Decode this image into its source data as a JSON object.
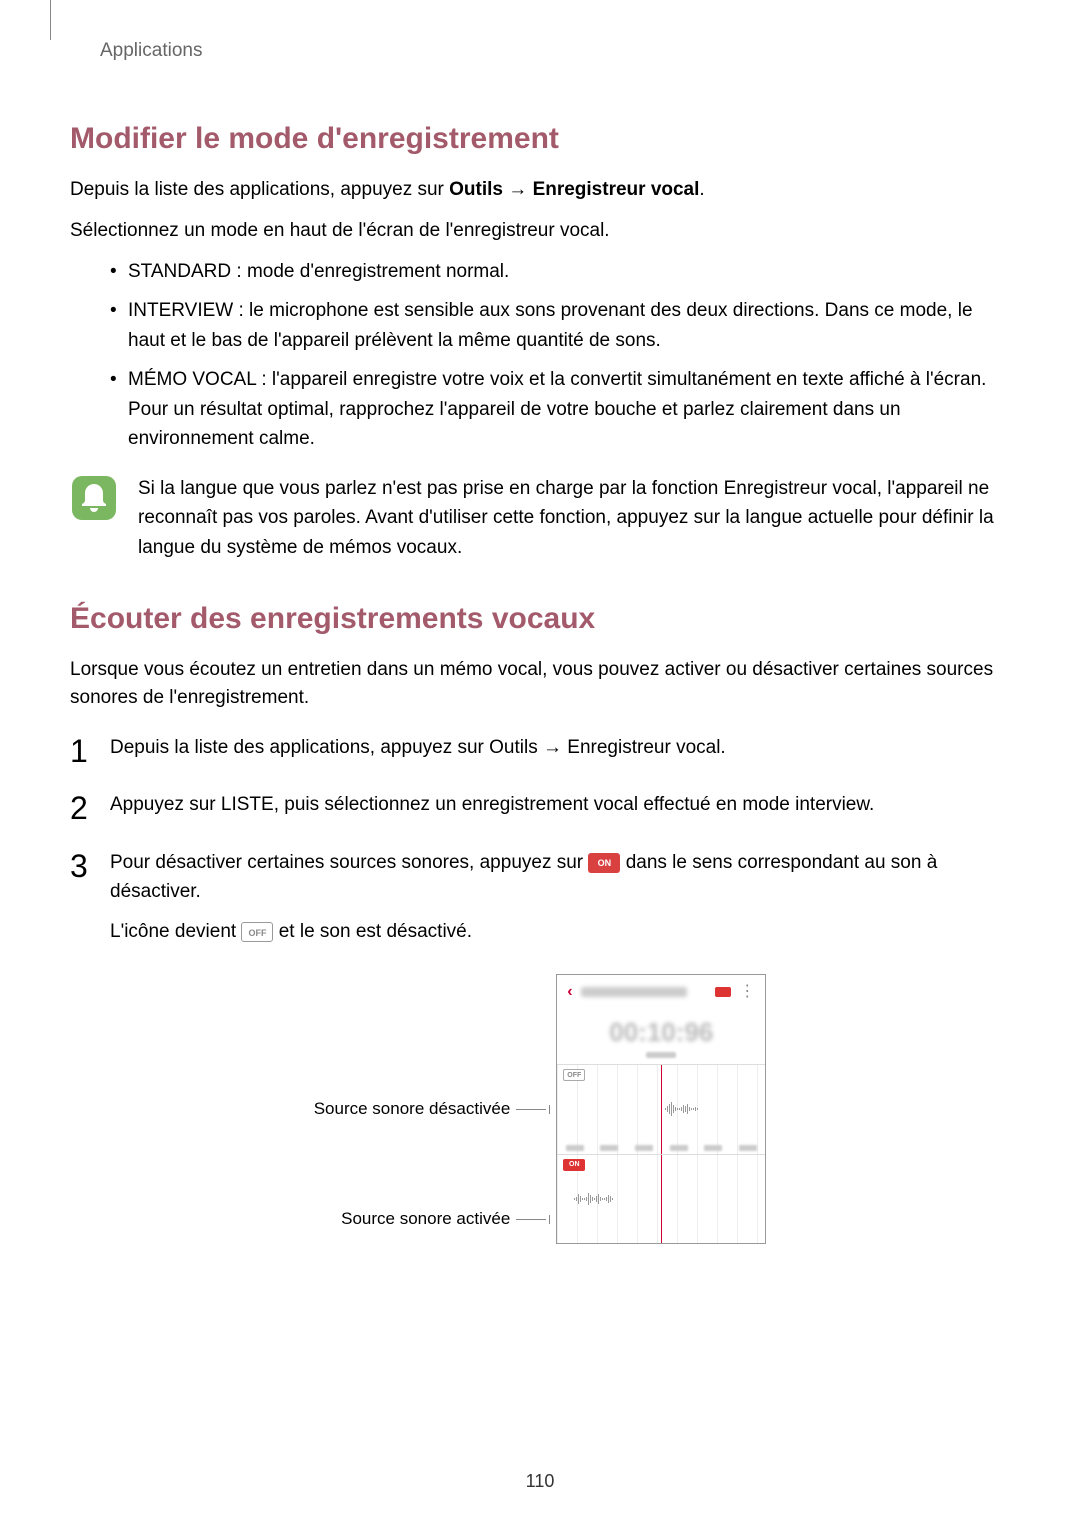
{
  "breadcrumb": "Applications",
  "section1": {
    "title": "Modifier le mode d'enregistrement",
    "title_color": "#a35a6a",
    "intro_pre": "Depuis la liste des applications, appuyez sur ",
    "intro_bold1": "Outils",
    "intro_arrow": " → ",
    "intro_bold2": "Enregistreur vocal",
    "intro_post": ".",
    "line2": "Sélectionnez un mode en haut de l'écran de l'enregistreur vocal.",
    "bullets": [
      {
        "term": "STANDARD",
        "text": " : mode d'enregistrement normal."
      },
      {
        "term": "INTERVIEW",
        "text": " : le microphone est sensible aux sons provenant des deux directions. Dans ce mode, le haut et le bas de l'appareil prélèvent la même quantité de sons."
      },
      {
        "term": "MÉMO VOCAL",
        "text": " : l'appareil enregistre votre voix et la convertit simultanément en texte affiché à l'écran. Pour un résultat optimal, rapprochez l'appareil de votre bouche et parlez clairement dans un environnement calme."
      }
    ],
    "note": "Si la langue que vous parlez n'est pas prise en charge par la fonction Enregistreur vocal, l'appareil ne reconnaît pas vos paroles. Avant d'utiliser cette fonction, appuyez sur la langue actuelle pour définir la langue du système de mémos vocaux.",
    "note_icon": {
      "bg": "#7bb661",
      "fg": "#ffffff"
    }
  },
  "section2": {
    "title": "Écouter des enregistrements vocaux",
    "title_color": "#a35a6a",
    "intro": "Lorsque vous écoutez un entretien dans un mémo vocal, vous pouvez activer ou désactiver certaines sources sonores de l'enregistrement.",
    "steps": {
      "s1_pre": "Depuis la liste des applications, appuyez sur ",
      "s1_bold1": "Outils",
      "s1_arrow": " → ",
      "s1_bold2": "Enregistreur vocal",
      "s1_post": ".",
      "s2_pre": "Appuyez sur ",
      "s2_bold": "LISTE",
      "s2_post": ", puis sélectionnez un enregistrement vocal effectué en mode interview.",
      "s3_pre": "Pour désactiver certaines sources sonores, appuyez sur ",
      "s3_post": " dans le sens correspondant au son à désactiver.",
      "s3_badge_on": {
        "label": "ON",
        "bg": "#d94141",
        "fg": "#ffffff"
      },
      "s3_sub_pre": "L'icône devient ",
      "s3_sub_post": " et le son est désactivé.",
      "s3_badge_off": {
        "label": "OFF",
        "bg": "#ffffff",
        "fg": "#888888",
        "border": "#999999"
      }
    }
  },
  "mock": {
    "callout_off": "Source sonore désactivée",
    "callout_on": "Source sonore activée",
    "header_title": "INTERVIEW 001",
    "time": "00:10:96",
    "badge_off": "OFF",
    "badge_on": "ON",
    "colors": {
      "accent": "#c0392b",
      "on_bg": "#d94141",
      "grid": "#eeeeee",
      "border": "#999999"
    },
    "wave_top": {
      "left_pct": 52,
      "heights": [
        2,
        6,
        10,
        14,
        8,
        4,
        2,
        2,
        4,
        8,
        6,
        10,
        4,
        2,
        2,
        4,
        2
      ]
    },
    "wave_bottom": {
      "left_pct": 8,
      "heights": [
        2,
        4,
        10,
        6,
        2,
        2,
        4,
        12,
        8,
        4,
        2,
        6,
        10,
        4,
        2,
        2,
        4,
        8,
        6,
        2
      ]
    }
  },
  "page_number": "110"
}
